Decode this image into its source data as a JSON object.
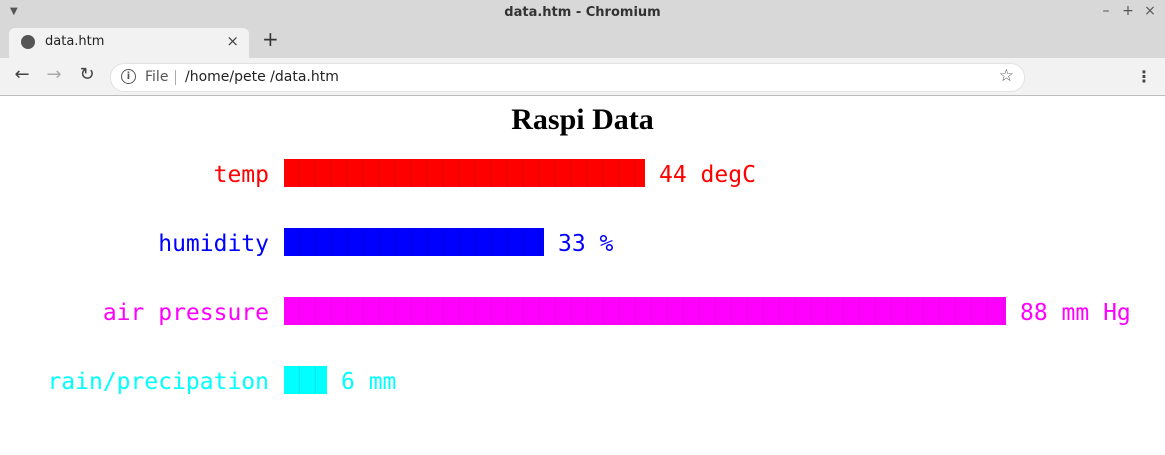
{
  "window": {
    "title": "data.htm - Chromium"
  },
  "tabs": [
    {
      "label": "data.htm"
    }
  ],
  "toolbar": {
    "scheme": "File",
    "url": "/home/pete /data.htm"
  },
  "page": {
    "title": "Raspi Data"
  },
  "metrics": [
    {
      "label": "temp",
      "value_text": "44 degC",
      "bar_fraction": 0.5,
      "color": "#ff0000"
    },
    {
      "label": "humidity",
      "value_text": "33 %",
      "bar_fraction": 0.36,
      "color": "#0000ff"
    },
    {
      "label": "air pressure",
      "value_text": "88 mm Hg",
      "bar_fraction": 1.0,
      "color": "#ff00ff"
    },
    {
      "label": "rain/precipation",
      "value_text": "6 mm",
      "bar_fraction": 0.06,
      "color": "#00ffff"
    }
  ]
}
